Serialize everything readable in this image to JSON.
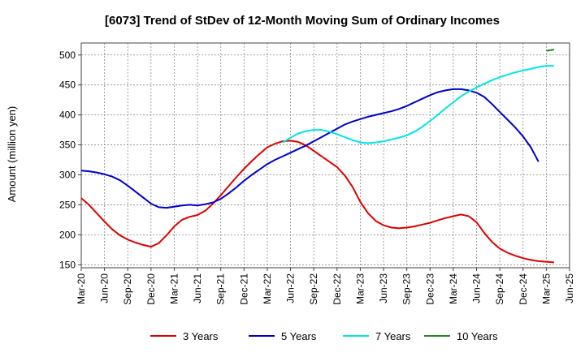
{
  "chart_data": {
    "type": "line",
    "title": "[6073]  Trend of StDev of 12-Month Moving Sum of Ordinary Incomes",
    "xlabel": "",
    "ylabel": "Amount (million yen)",
    "ylim": [
      145,
      520
    ],
    "y_ticks": [
      150,
      200,
      250,
      300,
      350,
      400,
      450,
      500
    ],
    "x_tick_labels": [
      "Mar-20",
      "Jun-20",
      "Sep-20",
      "Dec-20",
      "Mar-21",
      "Jun-21",
      "Sep-21",
      "Dec-21",
      "Mar-22",
      "Jun-22",
      "Sep-22",
      "Dec-22",
      "Mar-23",
      "Jun-23",
      "Sep-23",
      "Dec-23",
      "Mar-24",
      "Jun-24",
      "Sep-24",
      "Dec-24",
      "Mar-25",
      "Jun-25"
    ],
    "x_start": "Mar-20",
    "grid": true,
    "legend_position": "bottom",
    "series": [
      {
        "name": "3 Years",
        "color": "#dd0000",
        "start_index": 0,
        "values": [
          261,
          250,
          236,
          222,
          209,
          199,
          192,
          187,
          183,
          180,
          186,
          199,
          214,
          225,
          230,
          233,
          240,
          252,
          266,
          281,
          296,
          310,
          323,
          335,
          346,
          352,
          356,
          357,
          355,
          349,
          340,
          331,
          322,
          313,
          299,
          280,
          255,
          236,
          223,
          216,
          212,
          211,
          212,
          214,
          217,
          220,
          224,
          228,
          231,
          234,
          231,
          221,
          203,
          188,
          177,
          170,
          165,
          161,
          158,
          156,
          155,
          154
        ]
      },
      {
        "name": "5 Years",
        "color": "#0000cc",
        "start_index": 0,
        "values": [
          307,
          306,
          304,
          301,
          297,
          291,
          282,
          272,
          262,
          252,
          246,
          245,
          247,
          249,
          250,
          249,
          251,
          254,
          260,
          269,
          279,
          290,
          300,
          309,
          318,
          325,
          331,
          337,
          343,
          349,
          356,
          363,
          370,
          377,
          384,
          389,
          393,
          397,
          400,
          403,
          406,
          410,
          415,
          421,
          427,
          433,
          438,
          441,
          443,
          443,
          441,
          437,
          430,
          418,
          405,
          392,
          379,
          364,
          346,
          322
        ]
      },
      {
        "name": "7 Years",
        "color": "#00e5e5",
        "start_index": 26,
        "values": [
          354,
          362,
          369,
          373,
          375,
          375,
          372,
          368,
          363,
          358,
          354,
          353,
          354,
          356,
          359,
          362,
          366,
          372,
          380,
          390,
          400,
          411,
          421,
          431,
          439,
          446,
          452,
          458,
          463,
          467,
          471,
          474,
          477,
          480,
          482,
          482
        ]
      },
      {
        "name": "10 Years",
        "color": "#228b22",
        "start_index": 60,
        "values": [
          507,
          509
        ]
      }
    ]
  }
}
